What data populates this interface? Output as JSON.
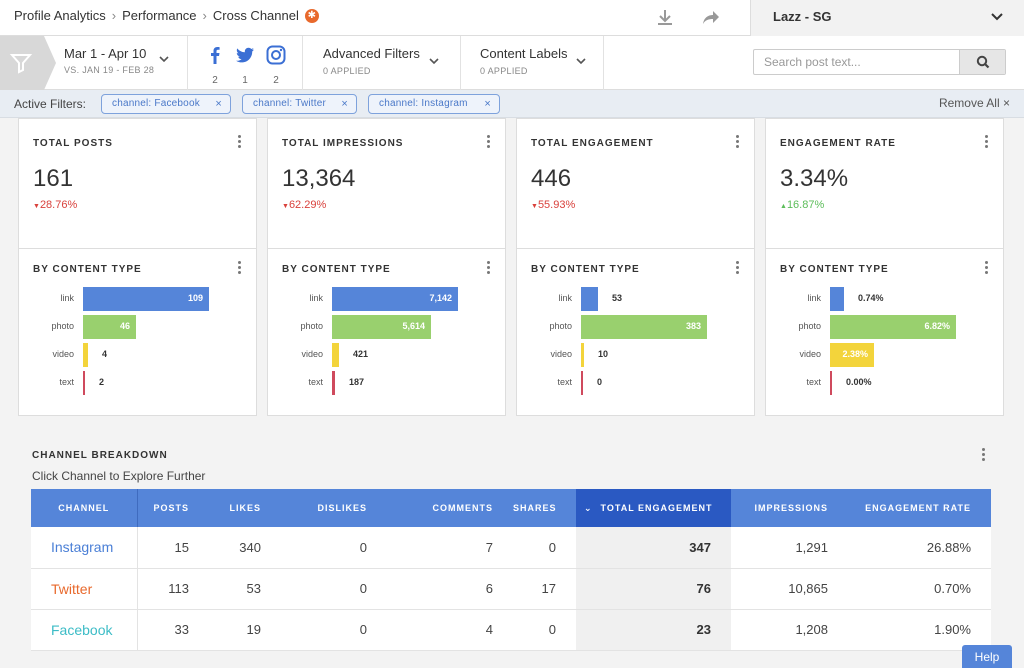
{
  "breadcrumb": {
    "items": [
      "Profile Analytics",
      "Performance",
      "Cross Channel"
    ],
    "badge": "✱"
  },
  "account": {
    "name": "Lazz - SG"
  },
  "date": {
    "range": "Mar 1 - Apr 10",
    "compare": "VS. JAN 19 - FEB 28"
  },
  "social": [
    {
      "network": "facebook",
      "glyph": "f",
      "count": "2"
    },
    {
      "network": "twitter",
      "glyph": "t",
      "count": "1"
    },
    {
      "network": "instagram",
      "glyph": "i",
      "count": "2"
    }
  ],
  "advanced_filters": {
    "label": "Advanced Filters",
    "applied": "0 APPLIED"
  },
  "content_labels": {
    "label": "Content Labels",
    "applied": "0 APPLIED"
  },
  "search": {
    "placeholder": "Search post text..."
  },
  "active_filters": {
    "label": "Active Filters:",
    "chips": [
      "channel: Facebook",
      "channel: Twitter",
      "channel: Instagram"
    ],
    "remove_all": "Remove All",
    "remove_icon": "×"
  },
  "colors": {
    "link": "#5585d9",
    "photo": "#99d06e",
    "video": "#f3d43b",
    "text": "#cf4a5d"
  },
  "cards": [
    {
      "title": "TOTAL POSTS",
      "value": "161",
      "change": "28.76%",
      "direction": "down",
      "subtitle": "BY CONTENT TYPE",
      "rows": [
        {
          "label": "link",
          "value": "109",
          "n": 109
        },
        {
          "label": "photo",
          "value": "46",
          "n": 46
        },
        {
          "label": "video",
          "value": "4",
          "n": 4
        },
        {
          "label": "text",
          "value": "2",
          "n": 2
        }
      ],
      "max": 109
    },
    {
      "title": "TOTAL IMPRESSIONS",
      "value": "13,364",
      "change": "62.29%",
      "direction": "down",
      "subtitle": "BY CONTENT TYPE",
      "rows": [
        {
          "label": "link",
          "value": "7,142",
          "n": 7142
        },
        {
          "label": "photo",
          "value": "5,614",
          "n": 5614
        },
        {
          "label": "video",
          "value": "421",
          "n": 421
        },
        {
          "label": "text",
          "value": "187",
          "n": 187
        }
      ],
      "max": 7142
    },
    {
      "title": "TOTAL ENGAGEMENT",
      "value": "446",
      "change": "55.93%",
      "direction": "down",
      "subtitle": "BY CONTENT TYPE",
      "rows": [
        {
          "label": "link",
          "value": "53",
          "n": 53
        },
        {
          "label": "photo",
          "value": "383",
          "n": 383
        },
        {
          "label": "video",
          "value": "10",
          "n": 10
        },
        {
          "label": "text",
          "value": "0",
          "n": 0
        }
      ],
      "max": 383
    },
    {
      "title": "ENGAGEMENT RATE",
      "value": "3.34%",
      "change": "16.87%",
      "direction": "up",
      "subtitle": "BY CONTENT TYPE",
      "rows": [
        {
          "label": "link",
          "value": "0.74%",
          "n": 0.74
        },
        {
          "label": "photo",
          "value": "6.82%",
          "n": 6.82
        },
        {
          "label": "video",
          "value": "2.38%",
          "n": 2.38
        },
        {
          "label": "text",
          "value": "0.00%",
          "n": 0
        }
      ],
      "max": 6.82
    }
  ],
  "channel_breakdown": {
    "title": "CHANNEL BREAKDOWN",
    "subtitle": "Click Channel to Explore Further",
    "sort_icon": "⌄",
    "columns": [
      "CHANNEL",
      "POSTS",
      "LIKES",
      "DISLIKES",
      "COMMENTS",
      "SHARES",
      "TOTAL ENGAGEMENT",
      "IMPRESSIONS",
      "ENGAGEMENT RATE"
    ],
    "rows": [
      {
        "channel": "Instagram",
        "color": "#4a7fd6",
        "cells": [
          "15",
          "340",
          "0",
          "7",
          "0",
          "347",
          "1,291",
          "26.88%"
        ]
      },
      {
        "channel": "Twitter",
        "color": "#e8692c",
        "cells": [
          "113",
          "53",
          "0",
          "6",
          "17",
          "76",
          "10,865",
          "0.70%"
        ]
      },
      {
        "channel": "Facebook",
        "color": "#3cbcc6",
        "cells": [
          "33",
          "19",
          "0",
          "4",
          "0",
          "23",
          "1,208",
          "1.90%"
        ]
      }
    ]
  },
  "help": {
    "label": "Help"
  }
}
